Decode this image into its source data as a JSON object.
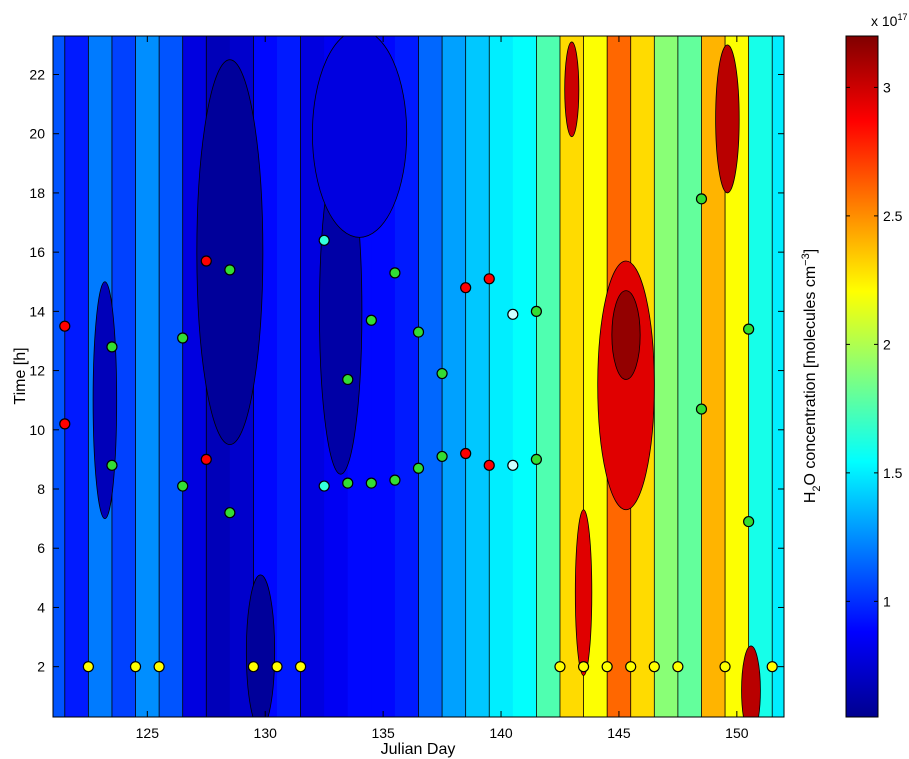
{
  "chart_data": {
    "type": "heatmap",
    "title": "",
    "xlabel": "Julian Day",
    "ylabel": "Time [h]",
    "xlim": [
      121,
      152
    ],
    "ylim": [
      0.3,
      23.3
    ],
    "x_ticks": [
      125,
      130,
      135,
      140,
      145,
      150
    ],
    "x_tick_labels": [
      "125",
      "130",
      "135",
      "140",
      "145",
      "150"
    ],
    "y_ticks": [
      2,
      4,
      6,
      8,
      10,
      12,
      14,
      16,
      18,
      20,
      22
    ],
    "y_tick_labels": [
      "2",
      "4",
      "6",
      "8",
      "10",
      "12",
      "14",
      "16",
      "18",
      "20",
      "22"
    ],
    "colorbar": {
      "label_main": "H",
      "label_sub1": "2",
      "label_mid": "O concentration [molecules cm",
      "label_sup": "−3",
      "label_end": "]",
      "exponent_label": "x 10",
      "exponent_power": "17",
      "range": [
        0.55,
        3.2
      ],
      "ticks": [
        1,
        1.5,
        2,
        2.5,
        3
      ],
      "tick_labels": [
        "1",
        "1.5",
        "2",
        "2.5",
        "3"
      ],
      "colormap": "jet"
    },
    "contour_field": {
      "description_units": "x10^17 molecules cm^-3",
      "day_columns": [
        {
          "day": 121,
          "value": 1.1
        },
        {
          "day": 122,
          "value": 0.95
        },
        {
          "day": 123,
          "value": 1.2
        },
        {
          "day": 124,
          "value": 1.05
        },
        {
          "day": 125,
          "value": 1.25
        },
        {
          "day": 126,
          "value": 1.1
        },
        {
          "day": 127,
          "value": 0.8
        },
        {
          "day": 128,
          "value": 0.7
        },
        {
          "day": 129,
          "value": 0.75
        },
        {
          "day": 130,
          "value": 0.9
        },
        {
          "day": 131,
          "value": 0.95
        },
        {
          "day": 132,
          "value": 0.8
        },
        {
          "day": 133,
          "value": 0.85
        },
        {
          "day": 134,
          "value": 0.9
        },
        {
          "day": 135,
          "value": 0.9
        },
        {
          "day": 136,
          "value": 0.95
        },
        {
          "day": 137,
          "value": 1.15
        },
        {
          "day": 138,
          "value": 1.3
        },
        {
          "day": 139,
          "value": 1.4
        },
        {
          "day": 140,
          "value": 1.5
        },
        {
          "day": 141,
          "value": 1.55
        },
        {
          "day": 142,
          "value": 1.75
        },
        {
          "day": 143,
          "value": 2.3
        },
        {
          "day": 144,
          "value": 2.2
        },
        {
          "day": 145,
          "value": 2.6
        },
        {
          "day": 146,
          "value": 2.3
        },
        {
          "day": 147,
          "value": 1.9
        },
        {
          "day": 148,
          "value": 1.8
        },
        {
          "day": 149,
          "value": 2.4
        },
        {
          "day": 150,
          "value": 2.2
        },
        {
          "day": 151,
          "value": 1.6
        },
        {
          "day": 152,
          "value": 1.5
        }
      ]
    },
    "points": [
      {
        "x": 121.5,
        "y": 13.5,
        "color": "#ff0000"
      },
      {
        "x": 121.5,
        "y": 10.2,
        "color": "#ff0000"
      },
      {
        "x": 123.5,
        "y": 12.8,
        "color": "#33dd33"
      },
      {
        "x": 123.5,
        "y": 8.8,
        "color": "#33dd33"
      },
      {
        "x": 126.5,
        "y": 13.1,
        "color": "#33dd33"
      },
      {
        "x": 126.5,
        "y": 8.1,
        "color": "#33dd33"
      },
      {
        "x": 127.5,
        "y": 15.7,
        "color": "#ff0000"
      },
      {
        "x": 127.5,
        "y": 9.0,
        "color": "#ff0000"
      },
      {
        "x": 128.5,
        "y": 15.4,
        "color": "#33dd33"
      },
      {
        "x": 128.5,
        "y": 7.2,
        "color": "#33dd33"
      },
      {
        "x": 132.5,
        "y": 16.4,
        "color": "#33ffdd"
      },
      {
        "x": 132.5,
        "y": 8.1,
        "color": "#33ffdd"
      },
      {
        "x": 133.5,
        "y": 11.7,
        "color": "#33dd33"
      },
      {
        "x": 133.5,
        "y": 8.2,
        "color": "#33dd33"
      },
      {
        "x": 134.5,
        "y": 13.7,
        "color": "#33dd33"
      },
      {
        "x": 134.5,
        "y": 8.2,
        "color": "#33dd33"
      },
      {
        "x": 135.5,
        "y": 15.3,
        "color": "#33dd33"
      },
      {
        "x": 135.5,
        "y": 8.3,
        "color": "#33dd33"
      },
      {
        "x": 136.5,
        "y": 13.3,
        "color": "#33dd33"
      },
      {
        "x": 136.5,
        "y": 8.7,
        "color": "#33dd33"
      },
      {
        "x": 137.5,
        "y": 11.9,
        "color": "#33dd33"
      },
      {
        "x": 137.5,
        "y": 9.1,
        "color": "#33dd33"
      },
      {
        "x": 138.5,
        "y": 14.8,
        "color": "#ff0000"
      },
      {
        "x": 138.5,
        "y": 9.2,
        "color": "#ff0000"
      },
      {
        "x": 139.5,
        "y": 15.1,
        "color": "#ff0000"
      },
      {
        "x": 139.5,
        "y": 8.8,
        "color": "#ff0000"
      },
      {
        "x": 140.5,
        "y": 13.9,
        "color": "#ccffff"
      },
      {
        "x": 140.5,
        "y": 8.8,
        "color": "#ccffff"
      },
      {
        "x": 141.5,
        "y": 14.0,
        "color": "#33dd33"
      },
      {
        "x": 141.5,
        "y": 9.0,
        "color": "#33dd33"
      },
      {
        "x": 148.5,
        "y": 17.8,
        "color": "#33dd33"
      },
      {
        "x": 148.5,
        "y": 10.7,
        "color": "#33dd33"
      },
      {
        "x": 150.5,
        "y": 13.4,
        "color": "#33dd33"
      },
      {
        "x": 150.5,
        "y": 6.9,
        "color": "#33dd33"
      },
      {
        "x": 122.5,
        "y": 2,
        "color": "#ffff00"
      },
      {
        "x": 124.5,
        "y": 2,
        "color": "#ffff00"
      },
      {
        "x": 125.5,
        "y": 2,
        "color": "#ffff00"
      },
      {
        "x": 129.5,
        "y": 2,
        "color": "#ffff00"
      },
      {
        "x": 130.5,
        "y": 2,
        "color": "#ffff00"
      },
      {
        "x": 131.5,
        "y": 2,
        "color": "#ffff00"
      },
      {
        "x": 142.5,
        "y": 2,
        "color": "#ffff00"
      },
      {
        "x": 143.5,
        "y": 2,
        "color": "#ffff00"
      },
      {
        "x": 144.5,
        "y": 2,
        "color": "#ffff00"
      },
      {
        "x": 145.5,
        "y": 2,
        "color": "#ffff00"
      },
      {
        "x": 146.5,
        "y": 2,
        "color": "#ffff00"
      },
      {
        "x": 147.5,
        "y": 2,
        "color": "#ffff00"
      },
      {
        "x": 149.5,
        "y": 2,
        "color": "#ffff00"
      },
      {
        "x": 151.5,
        "y": 2,
        "color": "#ffff00"
      }
    ]
  }
}
